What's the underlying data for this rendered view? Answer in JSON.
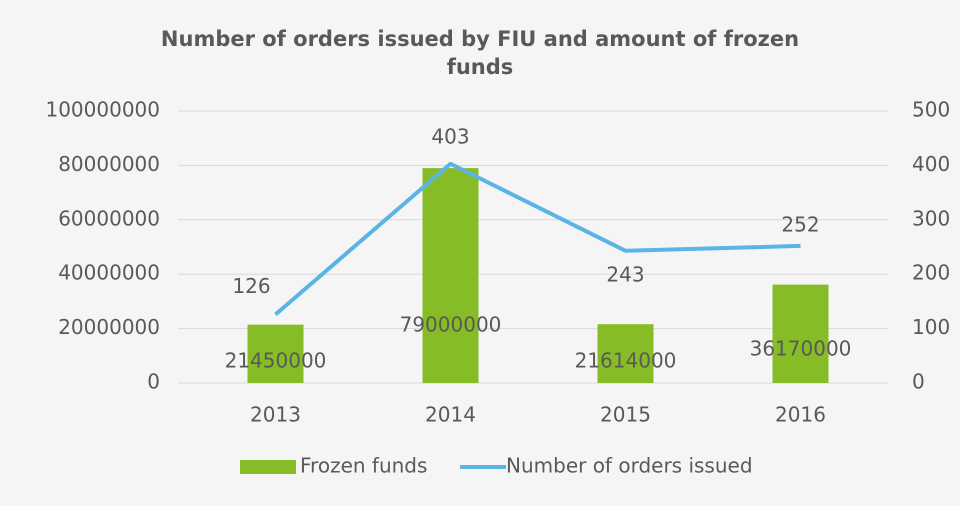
{
  "chart_data": {
    "type": "bar",
    "title": "Number of orders issued by FIU and amount of frozen funds",
    "categories": [
      "2013",
      "2014",
      "2015",
      "2016"
    ],
    "series": [
      {
        "name": "Frozen funds",
        "type": "bar",
        "color": "#86bc25",
        "values": [
          21450000,
          79000000,
          21614000,
          36170000
        ]
      },
      {
        "name": "Number of orders issued",
        "type": "line",
        "axis": "y2",
        "color": "#5ab4e5",
        "values": [
          126,
          403,
          243,
          252
        ]
      }
    ],
    "ylim": [
      0,
      100000000
    ],
    "yticks": [
      0,
      20000000,
      40000000,
      60000000,
      80000000,
      100000000
    ],
    "y2lim": [
      0,
      500
    ],
    "y2ticks": [
      0,
      100,
      200,
      300,
      400,
      500
    ],
    "grid": true,
    "legend": "bottom"
  }
}
